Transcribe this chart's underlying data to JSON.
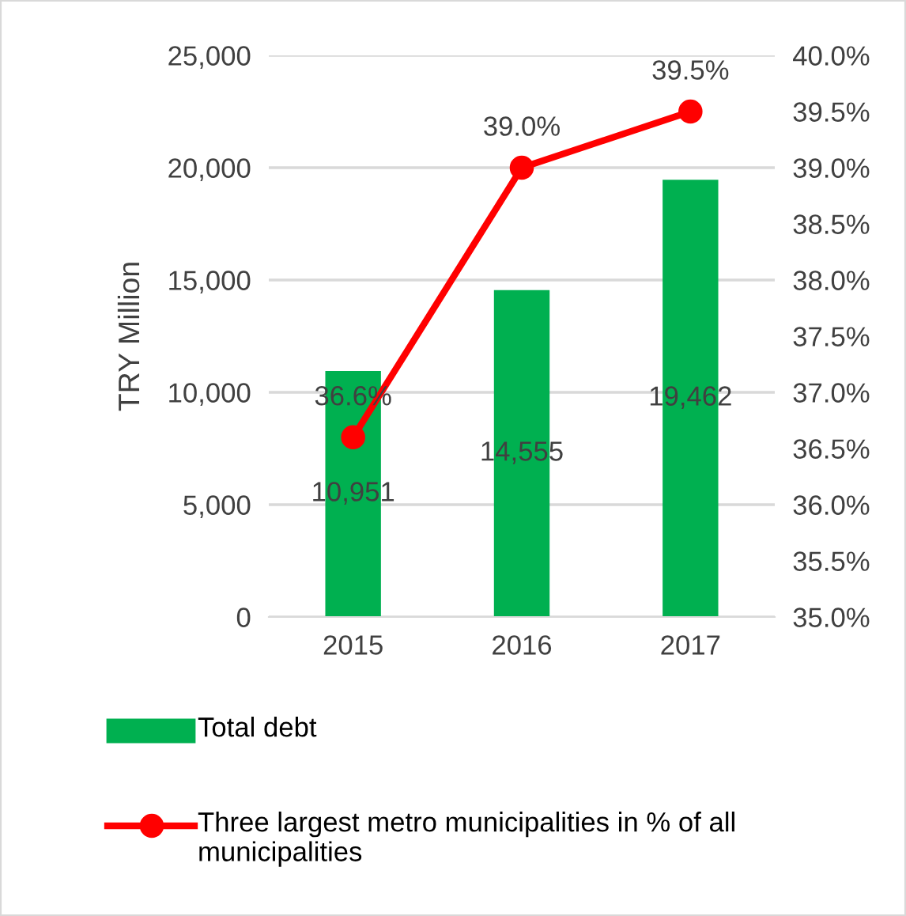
{
  "chart_data": {
    "type": "bar",
    "categories": [
      "2015",
      "2016",
      "2017"
    ],
    "ylabel": "TRY Million",
    "ylim": [
      0,
      25000
    ],
    "yticks": [
      {
        "value": 0,
        "label": "0"
      },
      {
        "value": 5000,
        "label": "5,000"
      },
      {
        "value": 10000,
        "label": "10,000"
      },
      {
        "value": 15000,
        "label": "15,000"
      },
      {
        "value": 20000,
        "label": "20,000"
      },
      {
        "value": 25000,
        "label": "25,000"
      }
    ],
    "y2lim": [
      35.0,
      40.0
    ],
    "y2ticks": [
      {
        "value": 35.0,
        "label": "35.0%"
      },
      {
        "value": 35.5,
        "label": "35.5%"
      },
      {
        "value": 36.0,
        "label": "36.0%"
      },
      {
        "value": 36.5,
        "label": "36.5%"
      },
      {
        "value": 37.0,
        "label": "37.0%"
      },
      {
        "value": 37.5,
        "label": "37.5%"
      },
      {
        "value": 38.0,
        "label": "38.0%"
      },
      {
        "value": 38.5,
        "label": "38.5%"
      },
      {
        "value": 39.0,
        "label": "39.0%"
      },
      {
        "value": 39.5,
        "label": "39.5%"
      },
      {
        "value": 40.0,
        "label": "40.0%"
      }
    ],
    "grid": "y",
    "legend": "bottom",
    "series": [
      {
        "name": "Total debt",
        "color": "#00b050",
        "values": [
          10951,
          14555,
          19462
        ],
        "value_labels": [
          "10,951",
          "14,555",
          "19,462"
        ]
      },
      {
        "name": "Three largest metro municipalities in % of all municipalities",
        "type": "line",
        "axis": "y2",
        "color": "#ff0000",
        "marker": "circle",
        "line_style": "solid",
        "values": [
          36.6,
          39.0,
          39.5
        ],
        "value_labels": [
          "36.6%",
          "39.0%",
          "39.5%"
        ]
      }
    ]
  }
}
